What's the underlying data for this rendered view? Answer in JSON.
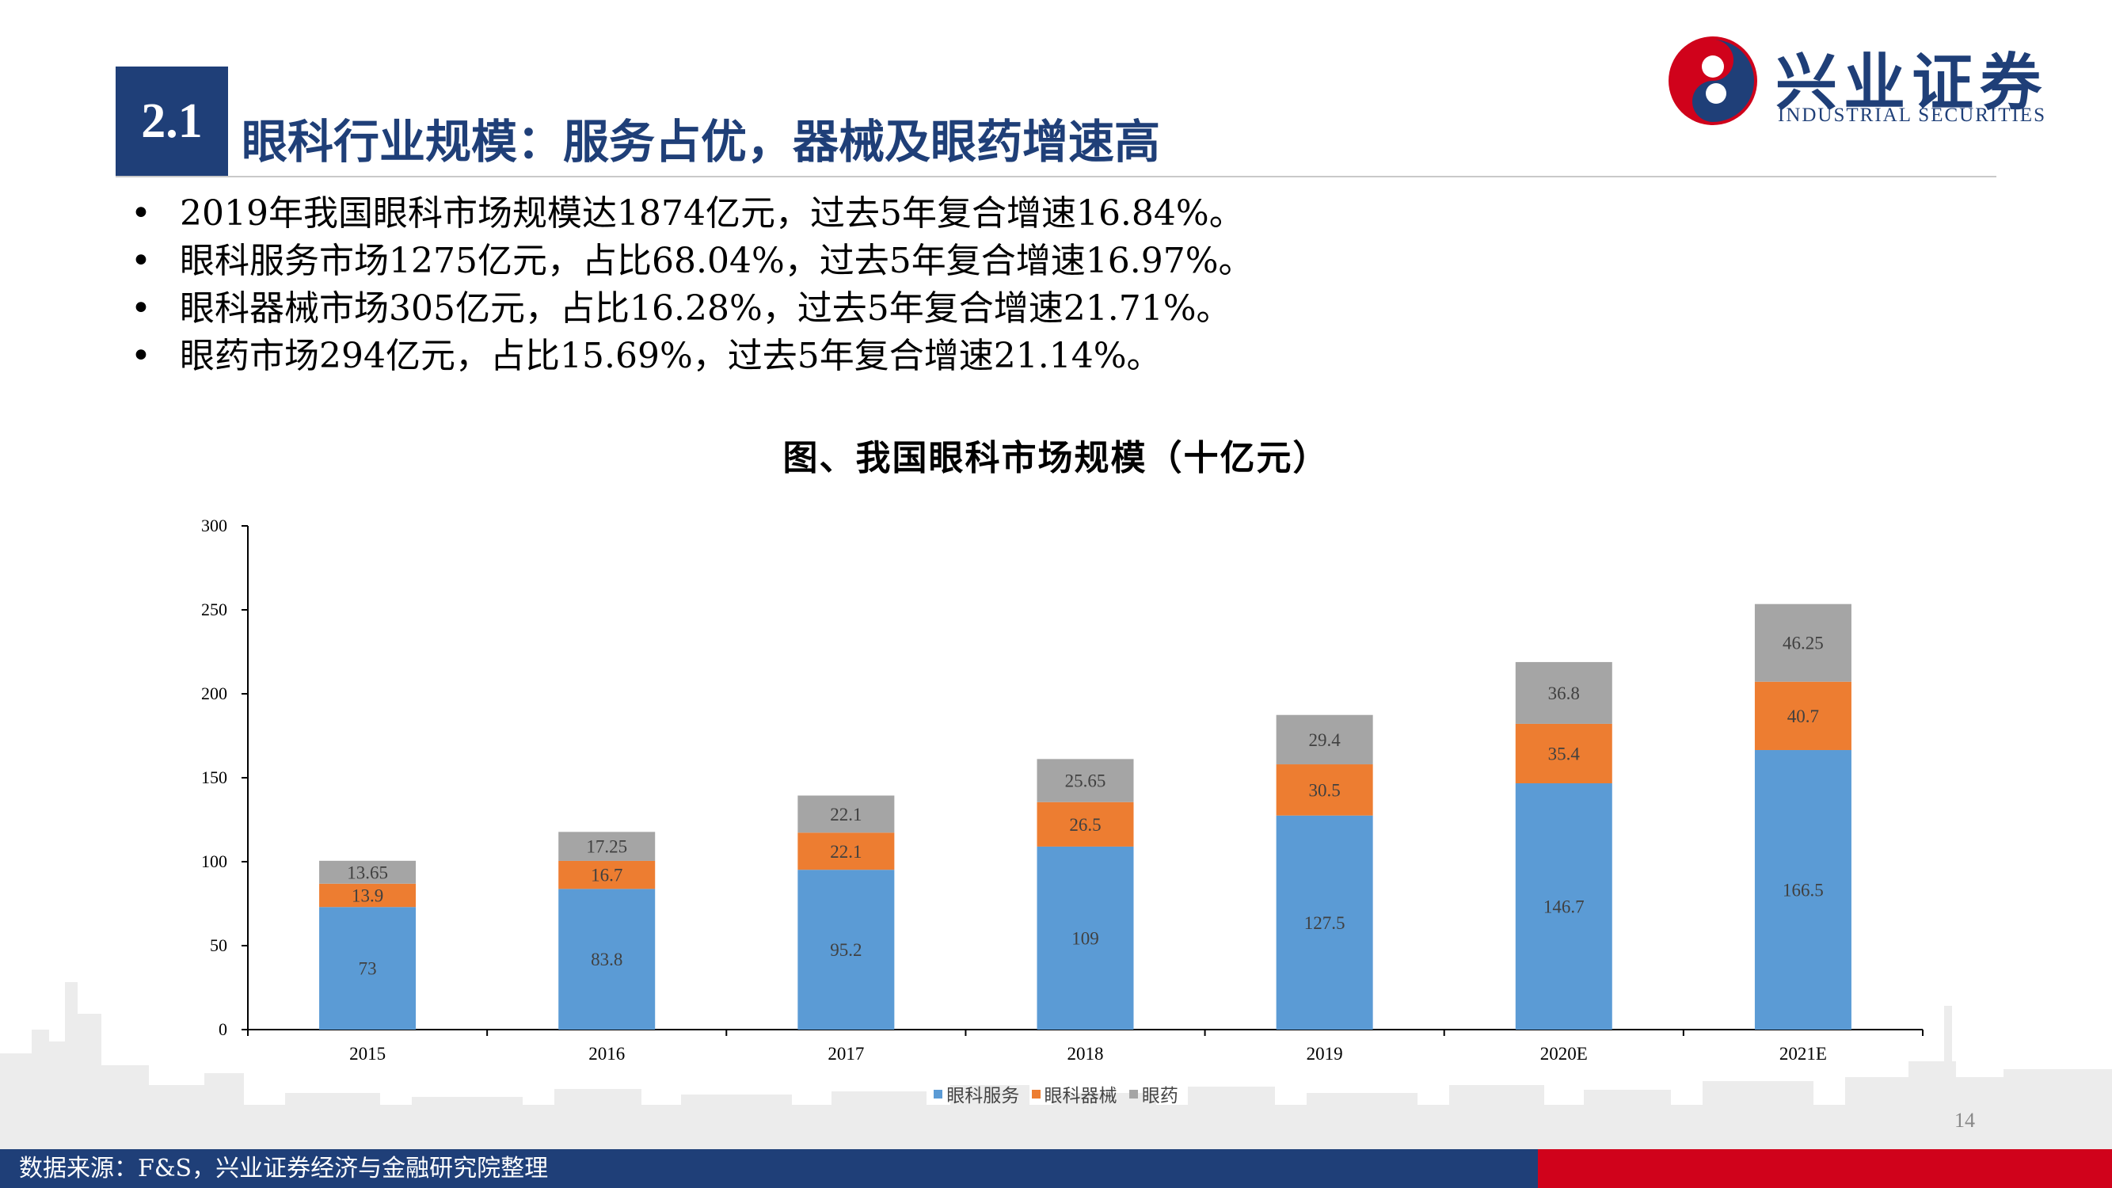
{
  "header": {
    "section_number": "2.1",
    "title": "眼科行业规模：服务占优，器械及眼药增速高"
  },
  "logo": {
    "name_cn": "兴业证券",
    "name_en": "INDUSTRIAL SECURITIES"
  },
  "bullets": [
    "2019年我国眼科市场规模达1874亿元，过去5年复合增速16.84%。",
    "眼科服务市场1275亿元，占比68.04%，过去5年复合增速16.97%。",
    "眼科器械市场305亿元，占比16.28%，过去5年复合增速21.71%。",
    "眼药市场294亿元，占比15.69%，过去5年复合增速21.14%。"
  ],
  "bullet_symbol": "•",
  "chart_data": {
    "type": "bar",
    "stacked": true,
    "title": "图、我国眼科市场规模（十亿元）",
    "categories": [
      "2015",
      "2016",
      "2017",
      "2018",
      "2019",
      "2020E",
      "2021E"
    ],
    "series": [
      {
        "name": "眼科服务",
        "color": "#5b9bd5",
        "values": [
          73,
          83.8,
          95.2,
          109,
          127.5,
          146.7,
          166.5
        ],
        "labels": [
          "73",
          "83.8",
          "95.2",
          "109",
          "127.5",
          "146.7",
          "166.5"
        ]
      },
      {
        "name": "眼科器械",
        "color": "#ed7d31",
        "values": [
          13.9,
          16.7,
          22.1,
          26.5,
          30.5,
          35.4,
          40.7
        ],
        "labels": [
          "13.9",
          "16.7",
          "22.1",
          "26.5",
          "30.5",
          "35.4",
          "40.7"
        ]
      },
      {
        "name": "眼药",
        "color": "#a5a5a5",
        "values": [
          13.65,
          17.25,
          22.1,
          25.65,
          29.4,
          36.8,
          46.25
        ],
        "labels": [
          "13.65",
          "17.25",
          "22.1",
          "25.65",
          "29.4",
          "36.8",
          "46.25"
        ]
      }
    ],
    "ylim": [
      0,
      300
    ],
    "yticks": [
      "0",
      "50",
      "100",
      "150",
      "200",
      "250",
      "300"
    ],
    "xlabel": "",
    "ylabel": "",
    "grid": false,
    "legend_position": "bottom"
  },
  "page_number": "14",
  "footer": {
    "source": "数据来源：F&S，兴业证券经济与金融研究院整理"
  },
  "colors": {
    "brand_blue": "#1f3f78",
    "brand_red": "#d0021b"
  }
}
